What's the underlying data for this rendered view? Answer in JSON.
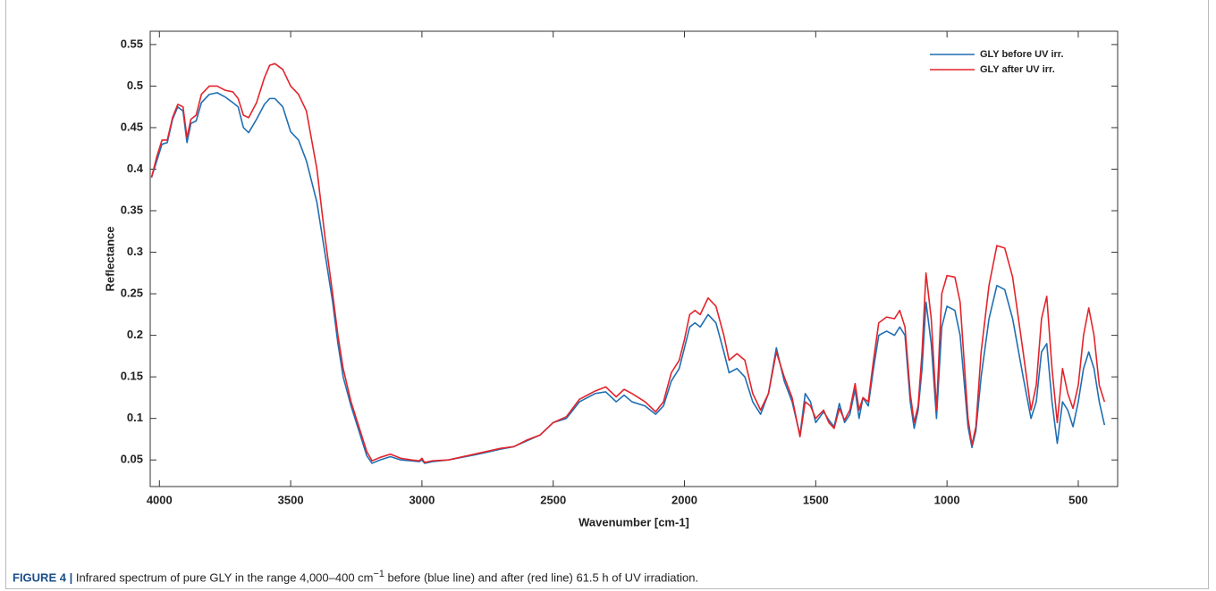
{
  "chart_data": {
    "type": "line",
    "xlabel": "Wavenumber [cm-1]",
    "ylabel": "Reflectance",
    "xlim": [
      4035,
      350
    ],
    "ylim": [
      0.018,
      0.566
    ],
    "xticks": [
      4000,
      3500,
      3000,
      2500,
      2000,
      1500,
      1000,
      500
    ],
    "yticks": [
      0.05,
      0.1,
      0.15,
      0.2,
      0.25,
      0.3,
      0.35,
      0.4,
      0.45,
      0.5,
      0.55
    ],
    "legend": "upper right",
    "box": true,
    "x": [
      4030,
      4010,
      3990,
      3970,
      3950,
      3930,
      3910,
      3895,
      3880,
      3860,
      3840,
      3810,
      3780,
      3750,
      3720,
      3700,
      3680,
      3660,
      3630,
      3600,
      3580,
      3560,
      3530,
      3500,
      3470,
      3440,
      3400,
      3370,
      3340,
      3320,
      3300,
      3270,
      3240,
      3210,
      3190,
      3160,
      3120,
      3080,
      3040,
      3010,
      3000,
      2990,
      2960,
      2900,
      2800,
      2700,
      2650,
      2600,
      2550,
      2500,
      2450,
      2400,
      2370,
      2340,
      2300,
      2260,
      2230,
      2200,
      2150,
      2110,
      2080,
      2050,
      2020,
      2000,
      1980,
      1960,
      1940,
      1910,
      1880,
      1850,
      1830,
      1800,
      1770,
      1740,
      1710,
      1680,
      1650,
      1620,
      1590,
      1560,
      1540,
      1520,
      1500,
      1470,
      1450,
      1430,
      1410,
      1390,
      1370,
      1350,
      1335,
      1320,
      1300,
      1280,
      1260,
      1230,
      1200,
      1180,
      1160,
      1140,
      1125,
      1110,
      1095,
      1080,
      1060,
      1040,
      1020,
      1000,
      970,
      950,
      920,
      905,
      890,
      870,
      840,
      810,
      780,
      750,
      710,
      680,
      660,
      640,
      620,
      600,
      580,
      560,
      540,
      520,
      500,
      480,
      460,
      440,
      420,
      400
    ],
    "series": [
      {
        "name": "GLY before UV irr.",
        "color": "#1f6fb2",
        "values": [
          0.39,
          0.41,
          0.43,
          0.432,
          0.46,
          0.475,
          0.47,
          0.432,
          0.455,
          0.458,
          0.48,
          0.49,
          0.492,
          0.487,
          0.48,
          0.475,
          0.45,
          0.444,
          0.46,
          0.478,
          0.485,
          0.485,
          0.475,
          0.445,
          0.435,
          0.41,
          0.36,
          0.3,
          0.24,
          0.19,
          0.15,
          0.115,
          0.085,
          0.055,
          0.046,
          0.05,
          0.054,
          0.05,
          0.049,
          0.048,
          0.05,
          0.046,
          0.048,
          0.05,
          0.056,
          0.063,
          0.066,
          0.073,
          0.08,
          0.095,
          0.1,
          0.12,
          0.125,
          0.13,
          0.132,
          0.12,
          0.128,
          0.12,
          0.115,
          0.105,
          0.115,
          0.145,
          0.16,
          0.185,
          0.21,
          0.215,
          0.21,
          0.225,
          0.215,
          0.18,
          0.155,
          0.16,
          0.15,
          0.12,
          0.105,
          0.13,
          0.185,
          0.145,
          0.12,
          0.08,
          0.13,
          0.12,
          0.095,
          0.108,
          0.098,
          0.09,
          0.118,
          0.095,
          0.105,
          0.135,
          0.1,
          0.125,
          0.115,
          0.16,
          0.2,
          0.205,
          0.2,
          0.21,
          0.2,
          0.12,
          0.088,
          0.11,
          0.16,
          0.24,
          0.19,
          0.1,
          0.21,
          0.235,
          0.23,
          0.2,
          0.09,
          0.065,
          0.085,
          0.15,
          0.22,
          0.26,
          0.255,
          0.22,
          0.15,
          0.1,
          0.12,
          0.18,
          0.19,
          0.12,
          0.07,
          0.12,
          0.11,
          0.09,
          0.12,
          0.16,
          0.18,
          0.16,
          0.12,
          0.092
        ]
      },
      {
        "name": "GLY after UV irr.",
        "color": "#e3242b",
        "values": [
          0.39,
          0.415,
          0.435,
          0.435,
          0.462,
          0.478,
          0.475,
          0.438,
          0.46,
          0.465,
          0.49,
          0.5,
          0.5,
          0.495,
          0.493,
          0.485,
          0.465,
          0.462,
          0.48,
          0.51,
          0.525,
          0.527,
          0.52,
          0.5,
          0.49,
          0.47,
          0.4,
          0.32,
          0.25,
          0.2,
          0.16,
          0.12,
          0.09,
          0.06,
          0.049,
          0.053,
          0.057,
          0.052,
          0.05,
          0.049,
          0.052,
          0.047,
          0.049,
          0.05,
          0.057,
          0.064,
          0.066,
          0.074,
          0.08,
          0.095,
          0.102,
          0.123,
          0.128,
          0.133,
          0.138,
          0.126,
          0.135,
          0.13,
          0.12,
          0.108,
          0.12,
          0.155,
          0.17,
          0.195,
          0.225,
          0.23,
          0.225,
          0.245,
          0.235,
          0.2,
          0.17,
          0.178,
          0.17,
          0.13,
          0.11,
          0.13,
          0.18,
          0.15,
          0.125,
          0.078,
          0.12,
          0.115,
          0.1,
          0.11,
          0.095,
          0.088,
          0.112,
          0.098,
          0.11,
          0.142,
          0.11,
          0.125,
          0.12,
          0.17,
          0.215,
          0.222,
          0.22,
          0.23,
          0.21,
          0.13,
          0.095,
          0.115,
          0.18,
          0.275,
          0.22,
          0.11,
          0.25,
          0.272,
          0.27,
          0.24,
          0.1,
          0.068,
          0.09,
          0.18,
          0.26,
          0.308,
          0.305,
          0.27,
          0.18,
          0.11,
          0.14,
          0.22,
          0.247,
          0.16,
          0.095,
          0.16,
          0.13,
          0.112,
          0.14,
          0.2,
          0.233,
          0.2,
          0.14,
          0.12
        ]
      }
    ]
  },
  "caption": {
    "label": "FIGURE 4 |",
    "text": "Infrared spectrum of pure GLY in the range 4,000–400 cm",
    "superscript": "−1",
    "text_after": " before (blue line) and after (red line) 61.5 h of UV irradiation."
  }
}
